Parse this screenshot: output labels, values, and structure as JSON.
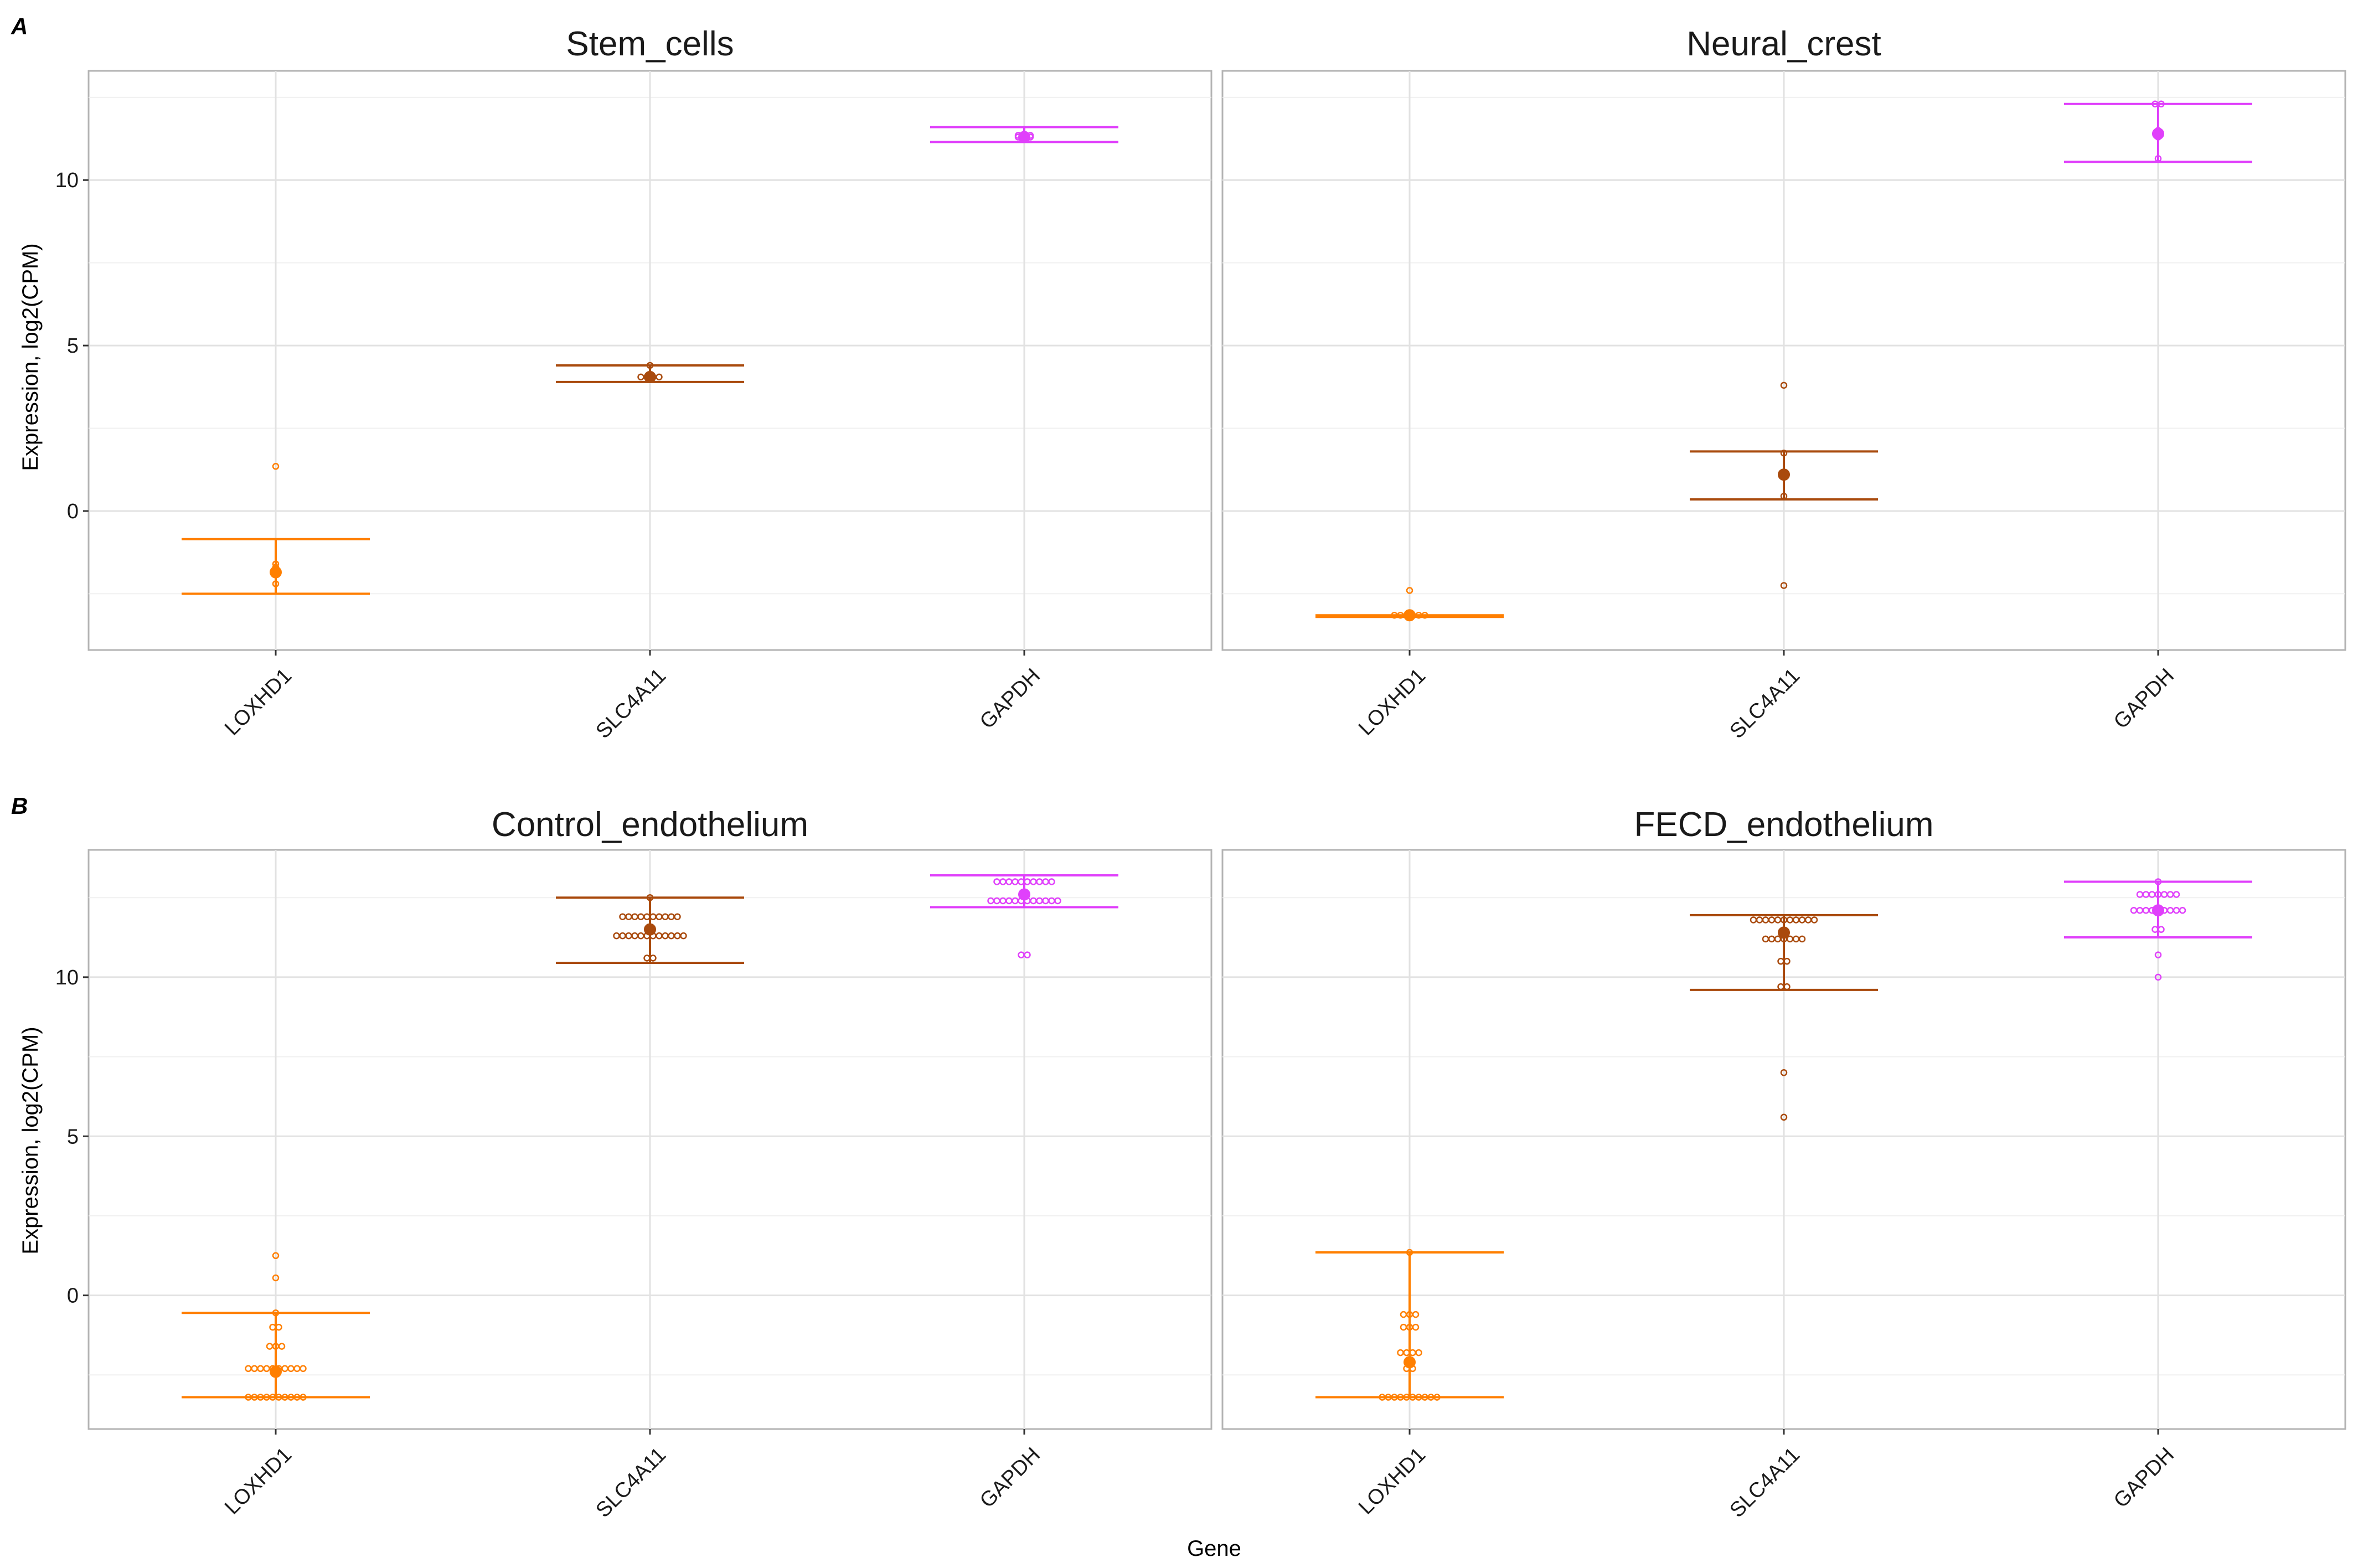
{
  "figure": {
    "panel_tags": [
      "A",
      "B"
    ],
    "xlabel": "Gene",
    "ylabel": "Expression, log2(CPM)"
  },
  "colors": {
    "LOXHD1": "#ff7f00",
    "SLC4A11": "#a94a0d",
    "GAPDH": "#e040fb"
  },
  "chart_data": [
    {
      "type": "scatter",
      "title": "Stem_cells",
      "panel": "A",
      "categories": [
        "LOXHD1",
        "SLC4A11",
        "GAPDH"
      ],
      "ylim": [
        -4.2,
        13.3
      ],
      "yticks": [
        0,
        5,
        10
      ],
      "grid": true,
      "series": [
        {
          "category": "LOXHD1",
          "mean": -1.85,
          "err_low": -2.5,
          "err_high": -0.85,
          "points": [
            1.35,
            -1.6,
            -1.7,
            -1.8,
            -1.9,
            -2.2
          ]
        },
        {
          "category": "SLC4A11",
          "mean": 4.05,
          "err_low": 3.9,
          "err_high": 4.4,
          "points": [
            4.4,
            4.05,
            4.05,
            4.05,
            4.05
          ]
        },
        {
          "category": "GAPDH",
          "mean": 11.3,
          "err_low": 11.15,
          "err_high": 11.6,
          "points": [
            11.35,
            11.35,
            11.35,
            11.3,
            11.3,
            11.3
          ]
        }
      ]
    },
    {
      "type": "scatter",
      "title": "Neural_crest",
      "panel": "A",
      "categories": [
        "LOXHD1",
        "SLC4A11",
        "GAPDH"
      ],
      "ylim": [
        -4.2,
        13.3
      ],
      "yticks": [
        0,
        5,
        10
      ],
      "grid": true,
      "series": [
        {
          "category": "LOXHD1",
          "mean": -3.15,
          "err_low": -3.2,
          "err_high": -3.15,
          "points": [
            -2.4,
            -3.15,
            -3.15,
            -3.15,
            -3.15,
            -3.15,
            -3.15
          ]
        },
        {
          "category": "SLC4A11",
          "mean": 1.1,
          "err_low": 0.35,
          "err_high": 1.8,
          "points": [
            3.8,
            1.75,
            0.45,
            -2.25
          ]
        },
        {
          "category": "GAPDH",
          "mean": 11.4,
          "err_low": 10.55,
          "err_high": 12.3,
          "points": [
            12.3,
            12.3,
            11.5,
            11.3,
            10.65
          ]
        }
      ]
    },
    {
      "type": "scatter",
      "title": "Control_endothelium",
      "panel": "B",
      "categories": [
        "LOXHD1",
        "SLC4A11",
        "GAPDH"
      ],
      "ylim": [
        -4.2,
        14.0
      ],
      "yticks": [
        0,
        5,
        10
      ],
      "grid": true,
      "series": [
        {
          "category": "LOXHD1",
          "mean": -2.4,
          "err_low": -3.2,
          "err_high": -0.55,
          "points": [
            1.25,
            0.55,
            -0.55,
            -1.0,
            -1.0,
            -1.6,
            -1.6,
            -1.6,
            -2.3,
            -2.3,
            -2.3,
            -2.3,
            -2.3,
            -2.3,
            -2.3,
            -2.3,
            -2.3,
            -2.3,
            -3.2,
            -3.2,
            -3.2,
            -3.2,
            -3.2,
            -3.2,
            -3.2,
            -3.2,
            -3.2,
            -3.2
          ]
        },
        {
          "category": "SLC4A11",
          "mean": 11.5,
          "err_low": 10.45,
          "err_high": 12.5,
          "points": [
            12.5,
            11.9,
            11.9,
            11.9,
            11.9,
            11.9,
            11.9,
            11.9,
            11.9,
            11.9,
            11.9,
            11.3,
            11.3,
            11.3,
            11.3,
            11.3,
            11.3,
            11.3,
            11.3,
            11.3,
            11.3,
            11.3,
            11.3,
            10.6,
            10.6
          ]
        },
        {
          "category": "GAPDH",
          "mean": 12.6,
          "err_low": 12.2,
          "err_high": 13.2,
          "points": [
            13.0,
            13.0,
            13.0,
            13.0,
            13.0,
            13.0,
            13.0,
            13.0,
            13.0,
            13.0,
            12.4,
            12.4,
            12.4,
            12.4,
            12.4,
            12.4,
            12.4,
            12.4,
            12.4,
            12.4,
            12.4,
            12.4,
            10.7,
            10.7
          ]
        }
      ]
    },
    {
      "type": "scatter",
      "title": "FECD_endothelium",
      "panel": "B",
      "categories": [
        "LOXHD1",
        "SLC4A11",
        "GAPDH"
      ],
      "ylim": [
        -4.2,
        14.0
      ],
      "yticks": [
        0,
        5,
        10
      ],
      "grid": true,
      "series": [
        {
          "category": "LOXHD1",
          "mean": -2.1,
          "err_low": -3.2,
          "err_high": 1.35,
          "points": [
            1.35,
            -0.6,
            -0.6,
            -0.6,
            -1.0,
            -1.0,
            -1.0,
            -1.8,
            -1.8,
            -1.8,
            -1.8,
            -2.3,
            -2.3,
            -3.2,
            -3.2,
            -3.2,
            -3.2,
            -3.2,
            -3.2,
            -3.2,
            -3.2,
            -3.2,
            -3.2
          ]
        },
        {
          "category": "SLC4A11",
          "mean": 11.4,
          "err_low": 9.6,
          "err_high": 11.95,
          "points": [
            11.8,
            11.8,
            11.8,
            11.8,
            11.8,
            11.8,
            11.8,
            11.8,
            11.8,
            11.8,
            11.8,
            11.2,
            11.2,
            11.2,
            11.2,
            11.2,
            11.2,
            11.2,
            10.5,
            10.5,
            9.7,
            9.7,
            7.0,
            5.6
          ]
        },
        {
          "category": "GAPDH",
          "mean": 12.1,
          "err_low": 11.25,
          "err_high": 13.0,
          "points": [
            13.0,
            12.6,
            12.6,
            12.6,
            12.6,
            12.6,
            12.6,
            12.6,
            12.1,
            12.1,
            12.1,
            12.1,
            12.1,
            12.1,
            12.1,
            12.1,
            12.1,
            11.5,
            11.5,
            10.7,
            10.0
          ]
        }
      ]
    }
  ]
}
